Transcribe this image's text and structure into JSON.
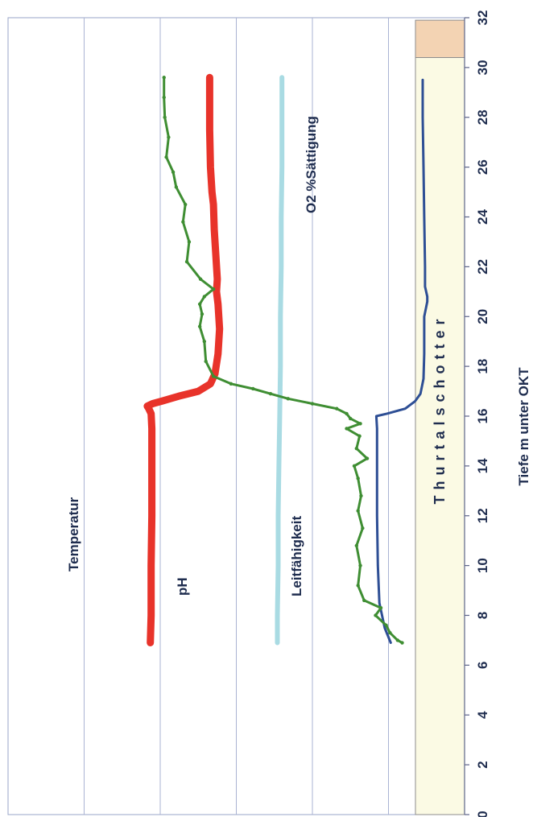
{
  "chart_data": {
    "type": "line",
    "title": "",
    "xlabel": "Tiefe m unter OKT",
    "xlim": [
      0,
      32
    ],
    "x_ticks": [
      "0",
      "2",
      "4",
      "6",
      "8",
      "10",
      "12",
      "14",
      "16",
      "18",
      "20",
      "22",
      "24",
      "26",
      "28",
      "30",
      "32"
    ],
    "ylim": [
      0,
      6
    ],
    "grid": true,
    "layers": [
      {
        "label": "Thurtalschotter",
        "from": 0,
        "to": 30.4,
        "color": "#fbfae4"
      },
      {
        "label": "",
        "from": 30.4,
        "to": 31.9,
        "color": "#f3d3b3"
      }
    ],
    "series": [
      {
        "name": "Temperatur",
        "color": "#2e4f95",
        "x": [
          6.9,
          7.5,
          8.5,
          10,
          12,
          14,
          15.5,
          16.0,
          16.1,
          16.3,
          16.6,
          16.9,
          17.2,
          17.5,
          18.5,
          20,
          20.6,
          20.8,
          21.2,
          22,
          24,
          26,
          28,
          29.5
        ],
        "y": [
          5.03,
          4.95,
          4.88,
          4.86,
          4.85,
          4.85,
          4.85,
          4.84,
          4.98,
          5.22,
          5.35,
          5.42,
          5.44,
          5.46,
          5.47,
          5.47,
          5.51,
          5.51,
          5.48,
          5.48,
          5.47,
          5.46,
          5.45,
          5.45
        ]
      },
      {
        "name": "pH",
        "color": "#a9dbe3",
        "x": [
          6.9,
          8,
          10,
          12,
          14,
          16,
          18,
          20,
          22,
          24,
          26,
          28,
          29.6
        ],
        "y": [
          3.54,
          3.54,
          3.55,
          3.55,
          3.56,
          3.57,
          3.58,
          3.58,
          3.59,
          3.59,
          3.6,
          3.6,
          3.6
        ],
        "thick": true
      },
      {
        "name": "Leitfähigkeit",
        "color": "#e8332a",
        "x": [
          6.9,
          8,
          10,
          12,
          14,
          15.5,
          16.1,
          16.3,
          16.4,
          16.5,
          16.6,
          16.8,
          17.0,
          17.3,
          17.7,
          18.5,
          19.5,
          20.5,
          21.0,
          21.5,
          22.5,
          23.5,
          24.5,
          25.0,
          26.0,
          27.5,
          29.6
        ],
        "y": [
          1.87,
          1.88,
          1.88,
          1.89,
          1.89,
          1.89,
          1.88,
          1.85,
          1.83,
          1.9,
          2.02,
          2.24,
          2.5,
          2.66,
          2.72,
          2.76,
          2.78,
          2.76,
          2.74,
          2.75,
          2.73,
          2.71,
          2.7,
          2.68,
          2.66,
          2.65,
          2.65
        ],
        "thick": true
      },
      {
        "name": "O2 %Sättigung",
        "color": "#3f8e33",
        "x": [
          6.9,
          7.0,
          7.3,
          7.6,
          8.0,
          8.3,
          8.6,
          9.2,
          10.0,
          10.8,
          11.5,
          12.2,
          12.8,
          13.5,
          14.0,
          14.3,
          14.7,
          15.2,
          15.5,
          15.7,
          15.9,
          16.1,
          16.3,
          16.5,
          16.7,
          16.9,
          17.1,
          17.3,
          17.6,
          18.2,
          19.0,
          19.6,
          20.1,
          20.5,
          20.8,
          21.1,
          21.5,
          22.2,
          23.0,
          23.8,
          24.5,
          25.2,
          25.8,
          26.4,
          27.2,
          28.0,
          28.8,
          29.6
        ],
        "y": [
          5.18,
          5.12,
          5.02,
          4.97,
          4.83,
          4.9,
          4.68,
          4.6,
          4.63,
          4.58,
          4.66,
          4.6,
          4.64,
          4.6,
          4.55,
          4.72,
          4.58,
          4.62,
          4.45,
          4.63,
          4.5,
          4.45,
          4.32,
          4.0,
          3.68,
          3.45,
          3.22,
          2.93,
          2.7,
          2.6,
          2.58,
          2.52,
          2.55,
          2.52,
          2.58,
          2.7,
          2.53,
          2.35,
          2.38,
          2.3,
          2.33,
          2.21,
          2.17,
          2.08,
          2.11,
          2.06,
          2.05,
          2.05
        ]
      }
    ]
  }
}
